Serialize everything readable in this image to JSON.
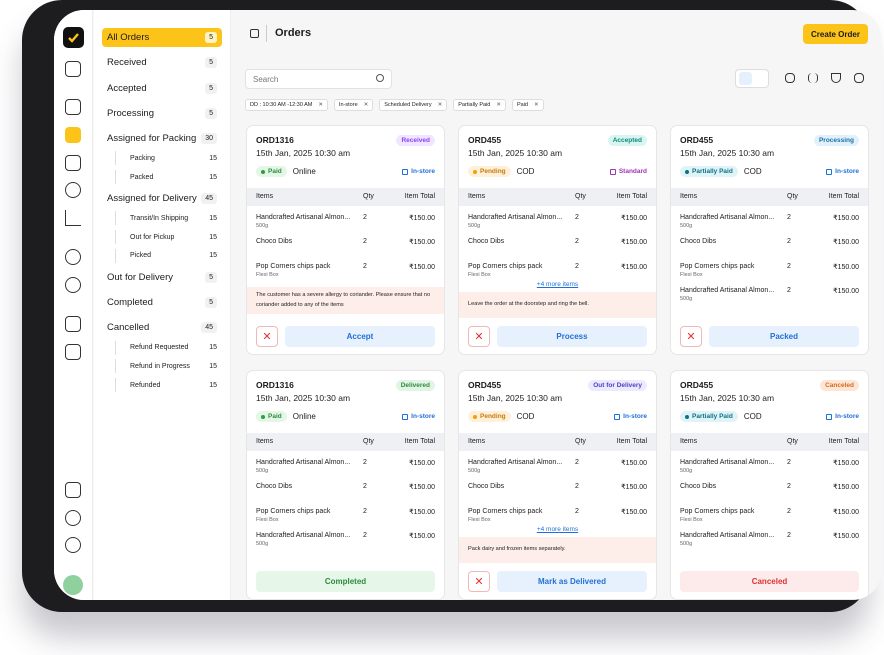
{
  "sidebar": {
    "nav": [
      {
        "label": "All Orders",
        "count": "5"
      },
      {
        "label": "Received",
        "count": "5"
      },
      {
        "label": "Accepted",
        "count": "5"
      },
      {
        "label": "Processing",
        "count": "5"
      },
      {
        "label": "Assigned for Packing",
        "count": "30",
        "children": [
          {
            "label": "Packing",
            "count": "15"
          },
          {
            "label": "Packed",
            "count": "15"
          }
        ]
      },
      {
        "label": "Assigned for Delivery",
        "count": "45",
        "children": [
          {
            "label": "Transit/In Shipping",
            "count": "15"
          },
          {
            "label": "Out for Pickup",
            "count": "15"
          },
          {
            "label": "Picked",
            "count": "15"
          }
        ]
      },
      {
        "label": "Out for Delivery",
        "count": "5"
      },
      {
        "label": "Completed",
        "count": "5"
      },
      {
        "label": "Cancelled",
        "count": "45",
        "children": [
          {
            "label": "Refund Requested",
            "count": "15"
          },
          {
            "label": "Refund in Progress",
            "count": "15"
          },
          {
            "label": "Refunded",
            "count": "15"
          }
        ]
      }
    ]
  },
  "header": {
    "title": "Orders",
    "create_button": "Create Order"
  },
  "search_placeholder": "Search",
  "filters": [
    "DD : 10:30 AM -12:30 AM",
    "In-store",
    "Scheduled Delivery",
    "Partially Paid",
    "Paid"
  ],
  "table_headers": [
    "Items",
    "Qty",
    "Item Total"
  ],
  "orders": [
    {
      "id": "ORD1316",
      "status": "Received",
      "date": "15th Jan, 2025 10:30 am",
      "payment_status": "Paid",
      "payment_method": "Online",
      "delivery": "In-store",
      "items": [
        {
          "name": "Handcrafted Artisanal Almon...",
          "variant": "500g",
          "qty": "2",
          "total": "₹150.00"
        },
        {
          "name": "Choco Dibs",
          "qty": "2",
          "total": "₹150.00"
        },
        {
          "name": "Pop Corners chips pack",
          "variant": "Flexi Box",
          "qty": "2",
          "total": "₹150.00"
        }
      ],
      "note": "The customer has a severe allergy to coriander. Please ensure that no coriander added to any of the items",
      "action": "Accept"
    },
    {
      "id": "ORD455",
      "status": "Accepted",
      "date": "15th Jan, 2025 10:30 am",
      "payment_status": "Pending",
      "payment_method": "COD",
      "delivery": "Standard",
      "items": [
        {
          "name": "Handcrafted Artisanal Almon...",
          "variant": "500g",
          "qty": "2",
          "total": "₹150.00"
        },
        {
          "name": "Choco Dibs",
          "qty": "2",
          "total": "₹150.00"
        },
        {
          "name": "Pop Corners chips pack",
          "variant": "Flexi Box",
          "qty": "2",
          "total": "₹150.00"
        }
      ],
      "more": "+4 more items",
      "note": "Leave the order at the doorstep and ring the bell.",
      "action": "Process"
    },
    {
      "id": "ORD455",
      "status": "Processing",
      "date": "15th Jan, 2025 10:30 am",
      "payment_status": "Partially Paid",
      "payment_method": "COD",
      "delivery": "In-store",
      "items": [
        {
          "name": "Handcrafted Artisanal Almon...",
          "variant": "500g",
          "qty": "2",
          "total": "₹150.00"
        },
        {
          "name": "Choco Dibs",
          "qty": "2",
          "total": "₹150.00"
        },
        {
          "name": "Pop Corners chips pack",
          "variant": "Flexi Box",
          "qty": "2",
          "total": "₹150.00"
        },
        {
          "name": "Handcrafted Artisanal Almon...",
          "variant": "500g",
          "qty": "2",
          "total": "₹150.00"
        }
      ],
      "action": "Packed"
    },
    {
      "id": "ORD1316",
      "status": "Delivered",
      "date": "15th Jan, 2025 10:30 am",
      "payment_status": "Paid",
      "payment_method": "Online",
      "delivery": "In-store",
      "items": [
        {
          "name": "Handcrafted Artisanal Almon...",
          "variant": "500g",
          "qty": "2",
          "total": "₹150.00"
        },
        {
          "name": "Choco Dibs",
          "qty": "2",
          "total": "₹150.00"
        },
        {
          "name": "Pop Corners chips pack",
          "variant": "Flexi Box",
          "qty": "2",
          "total": "₹150.00"
        },
        {
          "name": "Handcrafted Artisanal Almon...",
          "variant": "500g",
          "qty": "2",
          "total": "₹150.00"
        }
      ],
      "action": "Completed"
    },
    {
      "id": "ORD455",
      "status": "Out for Delivery",
      "date": "15th Jan, 2025 10:30 am",
      "payment_status": "Pending",
      "payment_method": "COD",
      "delivery": "In-store",
      "items": [
        {
          "name": "Handcrafted Artisanal Almon...",
          "variant": "500g",
          "qty": "2",
          "total": "₹150.00"
        },
        {
          "name": "Choco Dibs",
          "qty": "2",
          "total": "₹150.00"
        },
        {
          "name": "Pop Corners chips pack",
          "variant": "Flexi Box",
          "qty": "2",
          "total": "₹150.00"
        }
      ],
      "more": "+4 more items",
      "note": "Pack dairy and frozen items separately.",
      "action": "Mark as Delivered"
    },
    {
      "id": "ORD455",
      "status": "Canceled",
      "date": "15th Jan, 2025 10:30 am",
      "payment_status": "Partially Paid",
      "payment_method": "COD",
      "delivery": "In-store",
      "items": [
        {
          "name": "Handcrafted Artisanal Almon...",
          "variant": "500g",
          "qty": "2",
          "total": "₹150.00"
        },
        {
          "name": "Choco Dibs",
          "qty": "2",
          "total": "₹150.00"
        },
        {
          "name": "Pop Corners chips pack",
          "variant": "Flexi Box",
          "qty": "2",
          "total": "₹150.00"
        },
        {
          "name": "Handcrafted Artisanal Almon...",
          "variant": "500g",
          "qty": "2",
          "total": "₹150.00"
        }
      ],
      "action": "Canceled"
    }
  ]
}
